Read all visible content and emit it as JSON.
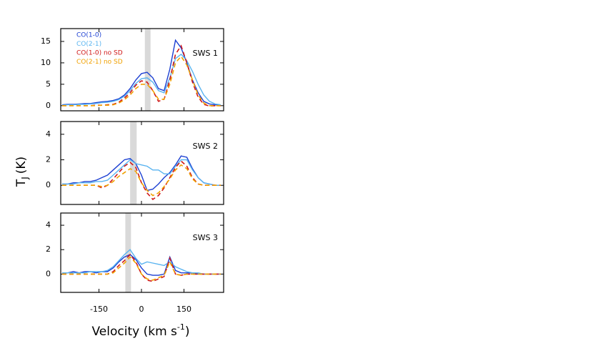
{
  "figure": {
    "ylabel": "T",
    "ylabel_sub": "J",
    "ylabel_unit": "(K)",
    "xlabel": "Velocity (km s",
    "xlabel_sup": "-1",
    "xlabel_end": ")"
  },
  "chart_data": [
    {
      "type": "line",
      "label": "SWS 1",
      "xlim": [
        -285,
        290
      ],
      "ylim": [
        -1.2,
        18
      ],
      "xticks": [
        -150,
        0,
        150
      ],
      "show_xtick_labels": false,
      "yticks": [
        0,
        5,
        10,
        15
      ],
      "highlight": [
        12,
        32
      ],
      "legend": "top-left",
      "x": [
        -280,
        -260,
        -240,
        -220,
        -200,
        -180,
        -160,
        -140,
        -120,
        -100,
        -80,
        -60,
        -40,
        -20,
        0,
        20,
        40,
        60,
        80,
        100,
        120,
        140,
        160,
        180,
        200,
        220,
        240,
        260,
        280
      ],
      "series": [
        {
          "name": "CO(1-0)",
          "color": "#1c3fd2",
          "dashed": false,
          "values": [
            0.2,
            0.3,
            0.3,
            0.4,
            0.5,
            0.5,
            0.7,
            0.9,
            1.0,
            1.2,
            1.6,
            2.5,
            4.0,
            6.0,
            7.5,
            7.8,
            6.5,
            4.0,
            3.5,
            8.5,
            15.3,
            13.5,
            10.0,
            6.0,
            3.0,
            1.0,
            0.4,
            0.2,
            0.1
          ]
        },
        {
          "name": "CO(2-1)",
          "color": "#5ab4f0",
          "dashed": false,
          "values": [
            0.1,
            0.2,
            0.2,
            0.3,
            0.3,
            0.4,
            0.5,
            0.7,
            0.8,
            1.0,
            1.4,
            2.2,
            3.5,
            5.2,
            6.3,
            6.5,
            5.5,
            3.5,
            3.0,
            6.5,
            11.0,
            12.0,
            10.5,
            8.0,
            5.0,
            2.5,
            1.0,
            0.4,
            0.2
          ]
        },
        {
          "name": "CO(1-0) no SD",
          "color": "#d01818",
          "dashed": true,
          "values": [
            0.0,
            0.0,
            0.0,
            0.0,
            0.0,
            0.0,
            0.1,
            0.1,
            0.2,
            0.3,
            0.8,
            1.8,
            3.0,
            4.8,
            5.8,
            5.5,
            3.5,
            1.0,
            1.5,
            6.0,
            12.0,
            14.0,
            10.0,
            5.5,
            2.0,
            0.3,
            -0.1,
            0.0,
            0.0
          ]
        },
        {
          "name": "CO(2-1) no SD",
          "color": "#f0a000",
          "dashed": true,
          "values": [
            0.0,
            0.0,
            0.0,
            0.0,
            0.0,
            0.0,
            0.0,
            0.1,
            0.1,
            0.2,
            0.6,
            1.4,
            2.5,
            4.0,
            5.0,
            5.0,
            3.5,
            1.5,
            1.5,
            5.0,
            10.0,
            11.5,
            9.5,
            6.0,
            2.5,
            0.6,
            0.0,
            0.0,
            0.0
          ]
        }
      ]
    },
    {
      "type": "line",
      "label": "SWS 2",
      "xlim": [
        -285,
        290
      ],
      "ylim": [
        -1.5,
        5
      ],
      "xticks": [
        -150,
        0,
        150
      ],
      "show_xtick_labels": false,
      "yticks": [
        0,
        2,
        4
      ],
      "highlight": [
        -40,
        -17
      ],
      "x": [
        -280,
        -260,
        -240,
        -220,
        -200,
        -180,
        -160,
        -140,
        -120,
        -100,
        -80,
        -60,
        -40,
        -20,
        0,
        20,
        40,
        60,
        80,
        100,
        120,
        140,
        160,
        180,
        200,
        220,
        240,
        260,
        280
      ],
      "series": [
        {
          "color": "#1c3fd2",
          "dashed": false,
          "values": [
            0.1,
            0.1,
            0.2,
            0.2,
            0.3,
            0.3,
            0.4,
            0.6,
            0.8,
            1.2,
            1.6,
            2.0,
            2.1,
            1.7,
            0.8,
            -0.4,
            -0.3,
            0.1,
            0.6,
            1.0,
            1.6,
            2.3,
            2.2,
            1.3,
            0.6,
            0.2,
            0.1,
            0.0,
            0.0
          ]
        },
        {
          "color": "#5ab4f0",
          "dashed": false,
          "values": [
            0.1,
            0.1,
            0.1,
            0.2,
            0.2,
            0.2,
            0.3,
            0.3,
            0.4,
            0.8,
            1.2,
            1.6,
            2.0,
            1.7,
            1.6,
            1.5,
            1.2,
            1.2,
            0.9,
            0.9,
            1.5,
            2.0,
            2.0,
            1.2,
            0.6,
            0.2,
            0.1,
            0.0,
            0.0
          ]
        },
        {
          "color": "#d01818",
          "dashed": true,
          "values": [
            0.0,
            0.0,
            0.0,
            0.0,
            0.0,
            0.0,
            0.0,
            -0.2,
            0.0,
            0.5,
            1.0,
            1.5,
            1.8,
            1.4,
            0.2,
            -0.6,
            -1.1,
            -0.8,
            -0.2,
            0.6,
            1.4,
            1.9,
            1.5,
            0.6,
            0.1,
            0.0,
            0.0,
            0.0,
            0.0
          ]
        },
        {
          "color": "#f0a000",
          "dashed": true,
          "values": [
            0.0,
            0.0,
            0.0,
            0.0,
            0.0,
            0.0,
            0.0,
            -0.1,
            0.0,
            0.3,
            0.7,
            1.0,
            1.3,
            1.1,
            0.2,
            -0.4,
            -0.8,
            -0.6,
            -0.1,
            0.5,
            1.2,
            1.6,
            1.3,
            0.5,
            0.1,
            0.0,
            0.0,
            0.0,
            0.0
          ]
        }
      ]
    },
    {
      "type": "line",
      "label": "SWS 3",
      "xlim": [
        -285,
        290
      ],
      "ylim": [
        -1.5,
        5
      ],
      "xticks": [
        -150,
        0,
        150
      ],
      "show_xtick_labels": true,
      "yticks": [
        0,
        2,
        4
      ],
      "highlight": [
        -57,
        -37
      ],
      "x": [
        -280,
        -260,
        -240,
        -220,
        -200,
        -180,
        -160,
        -140,
        -120,
        -100,
        -80,
        -60,
        -40,
        -20,
        0,
        20,
        40,
        60,
        80,
        100,
        120,
        140,
        160,
        180,
        200,
        220,
        240,
        260,
        280
      ],
      "series": [
        {
          "color": "#1c3fd2",
          "dashed": false,
          "values": [
            0.1,
            0.1,
            0.2,
            0.1,
            0.2,
            0.2,
            0.1,
            0.2,
            0.2,
            0.5,
            1.0,
            1.4,
            1.6,
            1.2,
            0.5,
            0.0,
            -0.1,
            -0.1,
            0.0,
            1.4,
            0.3,
            0.1,
            0.1,
            0.1,
            0.0,
            0.0,
            0.0,
            0.0,
            0.0
          ]
        },
        {
          "color": "#5ab4f0",
          "dashed": false,
          "values": [
            0.1,
            0.1,
            0.1,
            0.1,
            0.1,
            0.2,
            0.2,
            0.2,
            0.3,
            0.6,
            1.1,
            1.6,
            2.0,
            1.3,
            0.8,
            1.0,
            0.9,
            0.8,
            0.7,
            1.0,
            0.6,
            0.4,
            0.2,
            0.1,
            0.1,
            0.0,
            0.0,
            0.0,
            0.0
          ]
        },
        {
          "color": "#d01818",
          "dashed": true,
          "values": [
            0.0,
            0.0,
            0.0,
            0.0,
            0.0,
            0.0,
            0.0,
            0.0,
            0.0,
            0.2,
            0.7,
            1.1,
            1.6,
            1.0,
            0.0,
            -0.5,
            -0.6,
            -0.4,
            -0.2,
            1.3,
            0.0,
            -0.1,
            0.0,
            0.0,
            0.0,
            0.0,
            0.0,
            0.0,
            0.0
          ]
        },
        {
          "color": "#f0a000",
          "dashed": true,
          "values": [
            0.0,
            0.0,
            0.0,
            0.0,
            0.0,
            0.0,
            0.0,
            0.0,
            0.0,
            0.1,
            0.5,
            0.9,
            1.4,
            0.9,
            0.0,
            -0.4,
            -0.5,
            -0.3,
            -0.1,
            1.0,
            0.0,
            -0.1,
            0.0,
            0.0,
            0.0,
            0.0,
            0.0,
            0.0,
            0.0
          ]
        }
      ]
    }
  ]
}
